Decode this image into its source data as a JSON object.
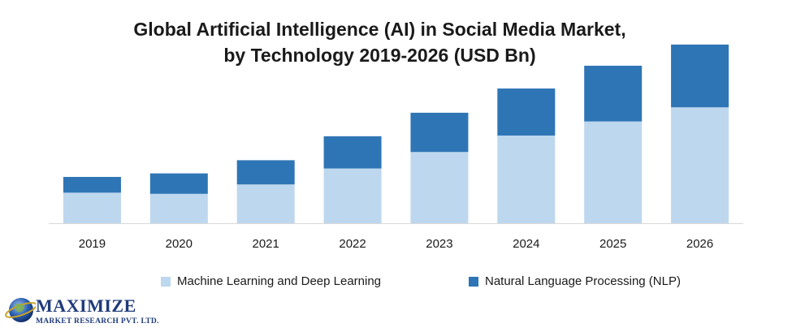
{
  "title_line1": "Global Artificial Intelligence (AI) in Social Media Market,",
  "title_line2": "by Technology 2019-2026 (USD Bn)",
  "logo": {
    "name": "MAXIMIZE",
    "subtitle": "MARKET RESEARCH PVT. LTD."
  },
  "colors": {
    "ml": "#bdd7ee",
    "nlp": "#2e75b6",
    "axis": "#d9d9d9"
  },
  "chart_data": {
    "type": "bar",
    "stacked": true,
    "categories": [
      "2019",
      "2020",
      "2021",
      "2022",
      "2023",
      "2024",
      "2025",
      "2026"
    ],
    "series": [
      {
        "name": "Machine Learning and Deep Learning",
        "values": [
          1.3,
          1.25,
          1.65,
          2.33,
          3.03,
          3.73,
          4.33,
          4.93
        ]
      },
      {
        "name": "Natural Language Processing (NLP)",
        "values": [
          0.67,
          0.87,
          1.03,
          1.37,
          1.67,
          2.0,
          2.37,
          2.67
        ]
      }
    ],
    "ylim": [
      0,
      7.7
    ],
    "grid": false,
    "legend": "bottom",
    "title": "Global Artificial Intelligence (AI) in Social Media Market, by Technology 2019-2026 (USD Bn)",
    "xlabel": "",
    "ylabel": ""
  }
}
